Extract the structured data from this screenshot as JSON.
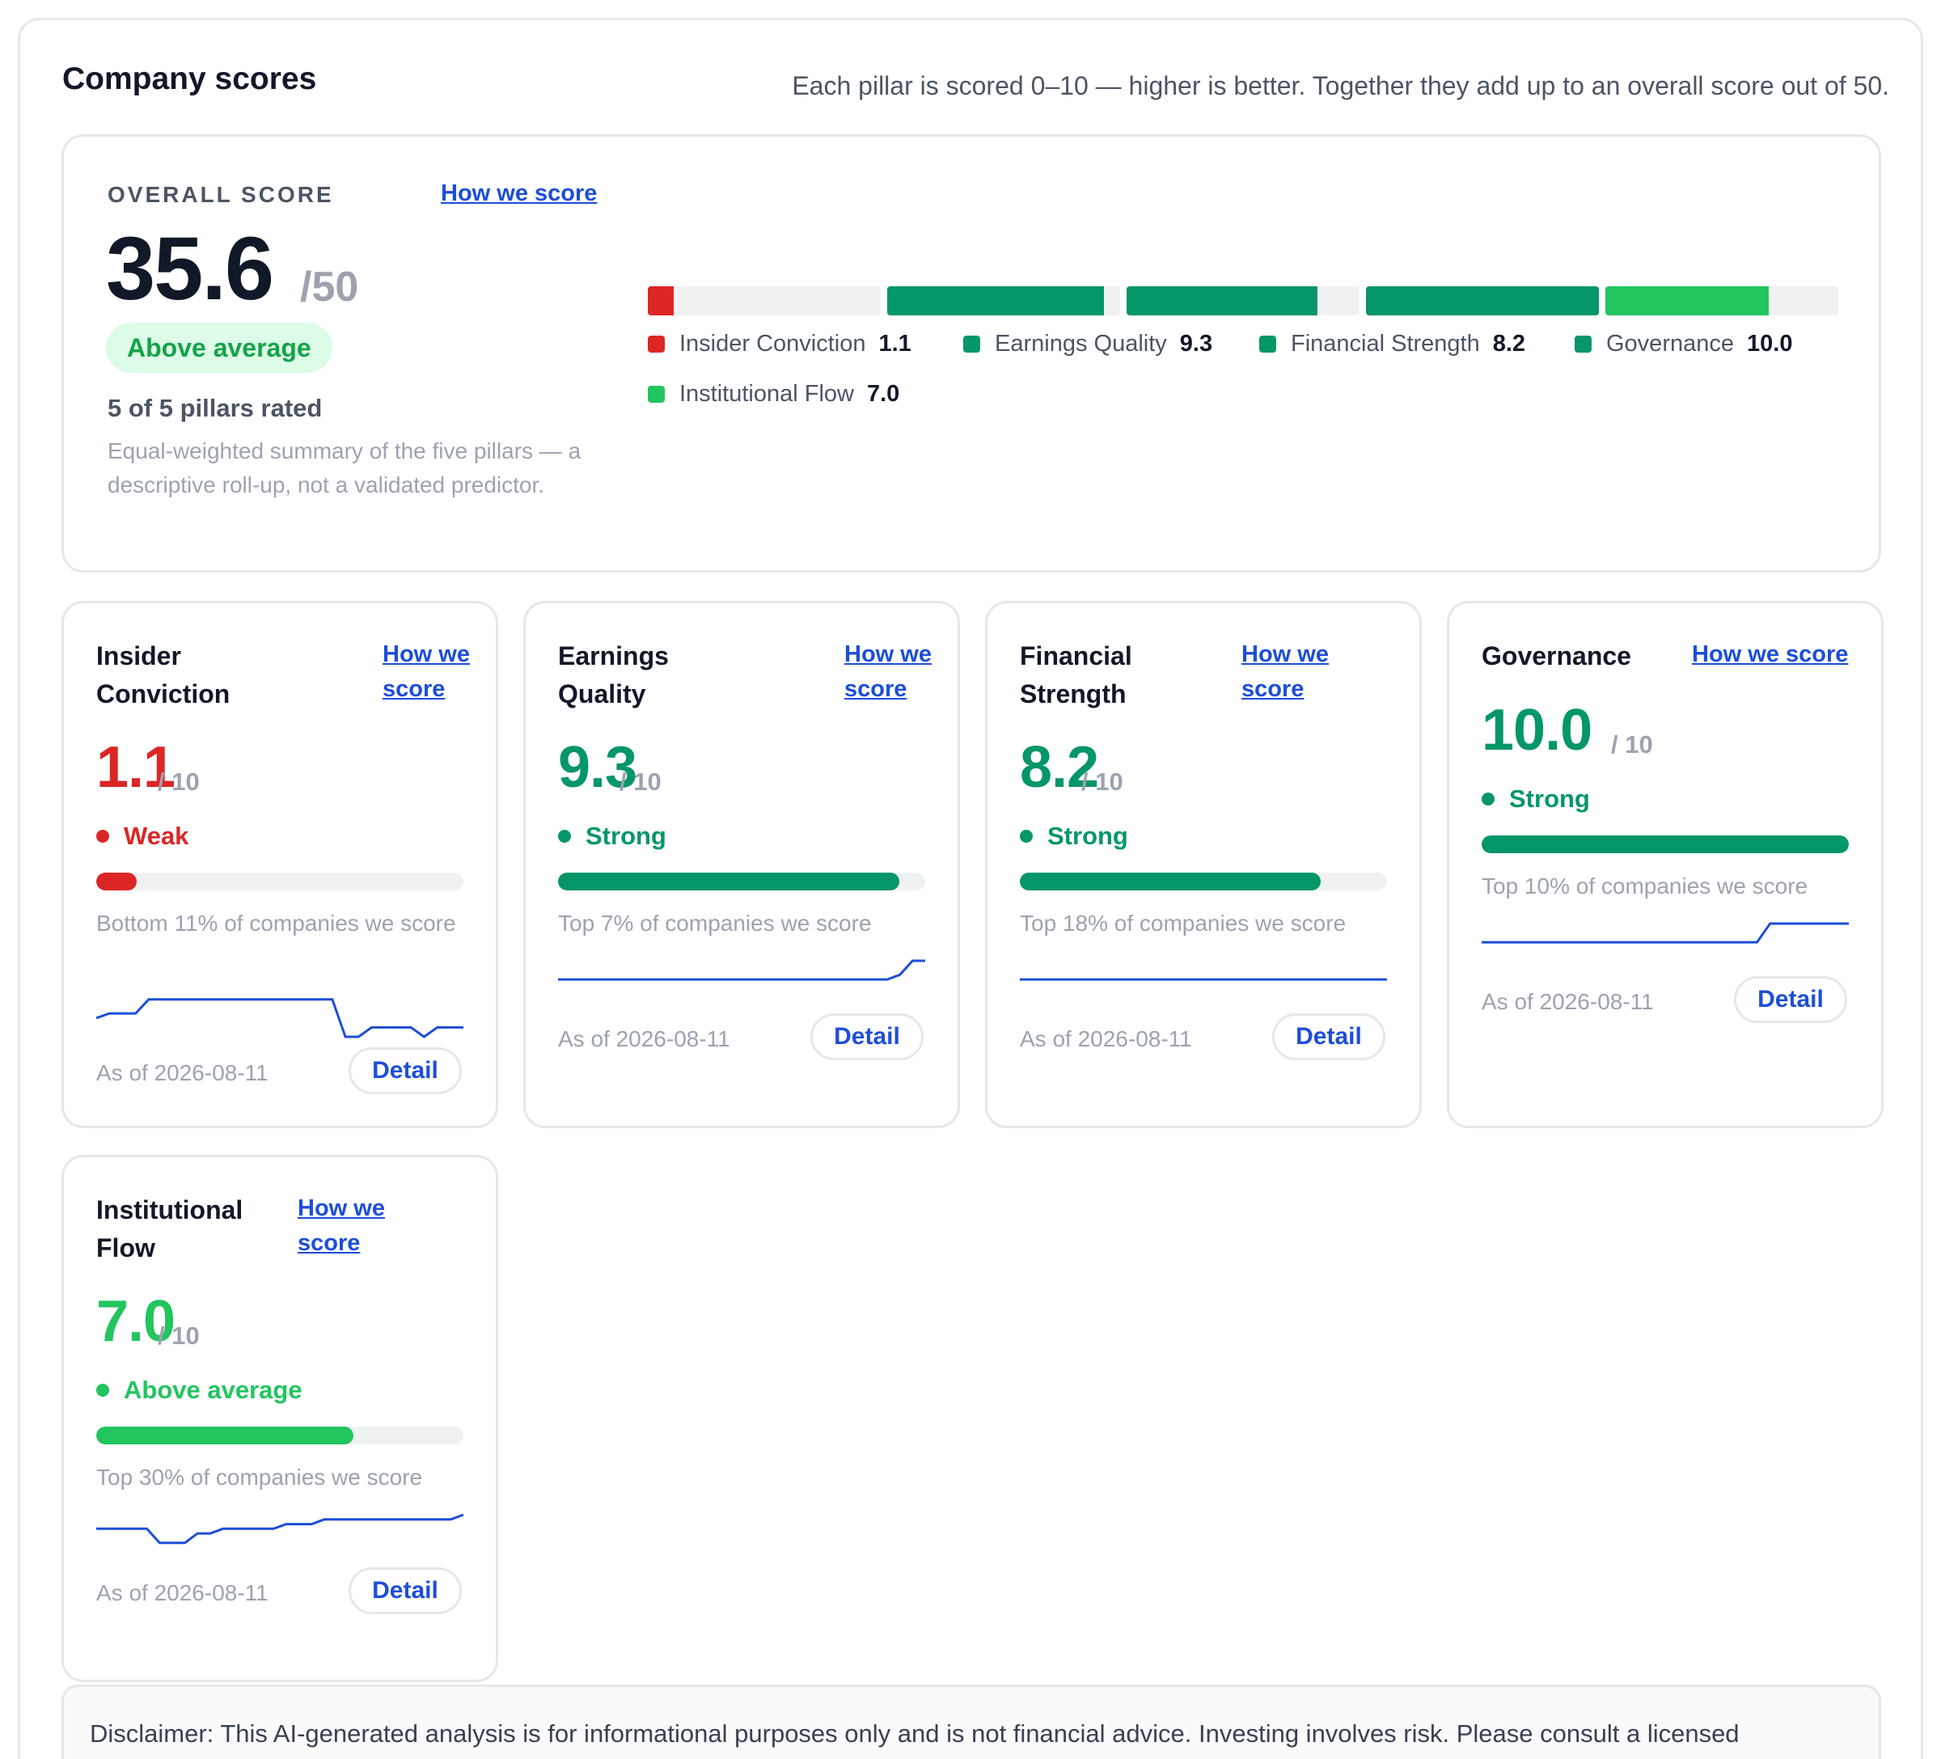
{
  "header": {
    "title": "Company scores",
    "subtitle": "Each pillar is scored 0–10 — higher is better. Together they add up to an overall score out of 50."
  },
  "overall": {
    "label": "OVERALL SCORE",
    "link": "How we score",
    "score": "35.6",
    "max": "/50",
    "badge": "Above average",
    "rated": "5 of 5 pillars rated",
    "description": "Equal-weighted summary of the five pillars — a descriptive roll-up, not a validated predictor.",
    "segments": [
      {
        "name": "Insider Conviction",
        "value": 1.1,
        "value_label": "1.1",
        "color": "#dc2626"
      },
      {
        "name": "Earnings Quality",
        "value": 9.3,
        "value_label": "9.3",
        "color": "#059669"
      },
      {
        "name": "Financial Strength",
        "value": 8.2,
        "value_label": "8.2",
        "color": "#059669"
      },
      {
        "name": "Governance",
        "value": 10.0,
        "value_label": "10.0",
        "color": "#059669"
      },
      {
        "name": "Institutional Flow",
        "value": 7.0,
        "value_label": "7.0",
        "color": "#22c55e"
      }
    ]
  },
  "pillars": [
    {
      "name": "Insider Conviction",
      "link": "How we score",
      "score": "1.1",
      "max": "/ 10",
      "status": "Weak",
      "color": "#dc2626",
      "fraction": 0.11,
      "rank": "Bottom 11% of companies we score",
      "as_of": "As of 2026-08-11",
      "detail": "Detail",
      "trend": [
        4,
        5,
        5,
        5,
        8,
        8,
        8,
        8,
        8,
        8,
        8,
        8,
        8,
        8,
        8,
        8,
        8,
        8,
        8,
        0,
        0,
        2,
        2,
        2,
        2,
        0,
        2,
        2,
        2
      ]
    },
    {
      "name": "Earnings Quality",
      "link": "How we score",
      "score": "9.3",
      "max": "/ 10",
      "status": "Strong",
      "color": "#059669",
      "fraction": 0.93,
      "rank": "Top 7% of companies we score",
      "as_of": "As of 2026-08-11",
      "detail": "Detail",
      "trend": [
        5,
        5,
        5,
        5,
        5,
        5,
        5,
        5,
        5,
        5,
        5,
        5,
        5,
        5,
        5,
        5,
        5,
        5,
        5,
        5,
        5,
        5,
        5,
        5,
        5,
        5,
        5,
        6,
        9,
        9
      ]
    },
    {
      "name": "Financial Strength",
      "link": "How we score",
      "score": "8.2",
      "max": "/ 10",
      "status": "Strong",
      "color": "#059669",
      "fraction": 0.82,
      "rank": "Top 18% of companies we score",
      "as_of": "As of 2026-08-11",
      "detail": "Detail",
      "trend": [
        5,
        5,
        5,
        5,
        5,
        5,
        5,
        5,
        5,
        5
      ]
    },
    {
      "name": "Governance",
      "link": "How we score",
      "score": "10.0",
      "max": "/ 10",
      "status": "Strong",
      "color": "#059669",
      "fraction": 1.0,
      "rank": "Top 10% of companies we score",
      "as_of": "As of 2026-08-11",
      "detail": "Detail",
      "trend": [
        5,
        5,
        5,
        5,
        5,
        5,
        5,
        5,
        5,
        5,
        5,
        5,
        5,
        5,
        5,
        5,
        5,
        5,
        5,
        5,
        5,
        5,
        9,
        9,
        9,
        9,
        9,
        9,
        9
      ]
    },
    {
      "name": "Institutional Flow",
      "link": "How we score",
      "score": "7.0",
      "max": "/ 10",
      "status": "Above average",
      "color": "#22c55e",
      "fraction": 0.7,
      "rank": "Top 30% of companies we score",
      "as_of": "As of 2026-08-11",
      "detail": "Detail",
      "trend": [
        6,
        6,
        6,
        6,
        6,
        3,
        3,
        3,
        5,
        5,
        6,
        6,
        6,
        6,
        6,
        7,
        7,
        7,
        8,
        8,
        8,
        8,
        8,
        8,
        8,
        8,
        8,
        8,
        8,
        9
      ]
    }
  ],
  "disclaimer": "Disclaimer: This AI-generated analysis is for informational purposes only and is not financial advice. Investing involves risk. Please consult a licensed"
}
